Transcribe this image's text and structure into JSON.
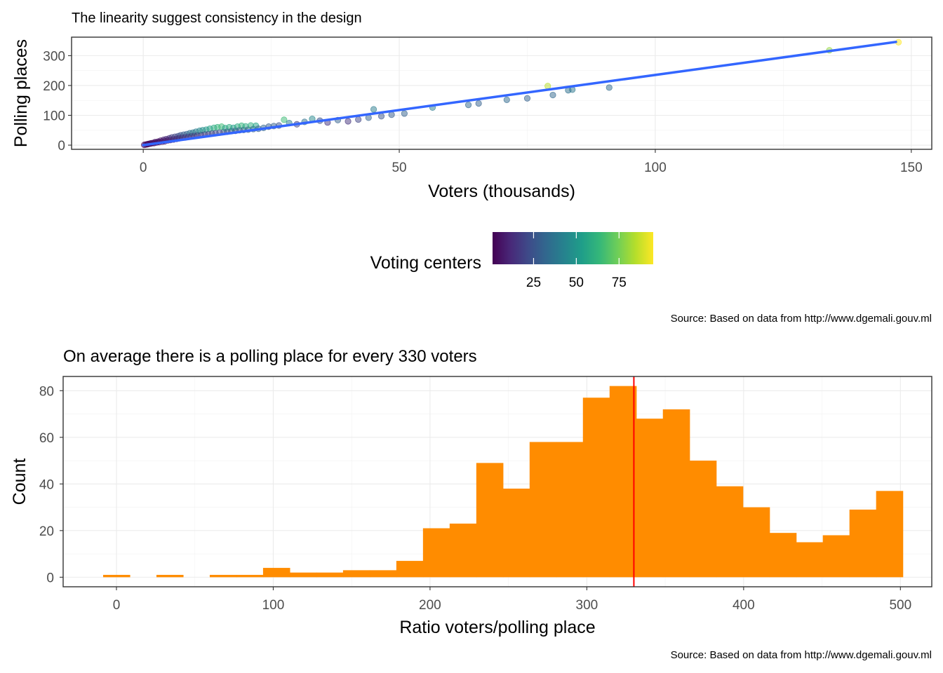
{
  "chart_data": [
    {
      "type": "scatter",
      "title": "The linearity suggest consistency in the design",
      "xlabel": "Voters (thousands)",
      "ylabel": "Polling places",
      "xlim": [
        -14,
        154
      ],
      "ylim": [
        -14,
        362
      ],
      "x_ticks": [
        0,
        50,
        100,
        150
      ],
      "y_ticks": [
        0,
        100,
        200,
        300
      ],
      "grid": true,
      "legend": {
        "title": "Voting centers",
        "position": "bottom",
        "type": "colorbar",
        "range": [
          1,
          95
        ],
        "ticks": [
          25,
          50,
          75
        ],
        "palette": [
          "#440154",
          "#482878",
          "#3e4a89",
          "#31688e",
          "#26828e",
          "#1f9e89",
          "#35b779",
          "#6ece58",
          "#b5de2b",
          "#fde725"
        ]
      },
      "fit_line": {
        "color": "#3366ff",
        "x": [
          0,
          147
        ],
        "y": [
          0,
          346
        ]
      },
      "points": [
        {
          "x": 0.2,
          "y": 1,
          "c": 1
        },
        {
          "x": 0.5,
          "y": 2,
          "c": 1
        },
        {
          "x": 0.8,
          "y": 3,
          "c": 2
        },
        {
          "x": 1.0,
          "y": 4,
          "c": 2
        },
        {
          "x": 1.3,
          "y": 5,
          "c": 3
        },
        {
          "x": 1.5,
          "y": 6,
          "c": 2
        },
        {
          "x": 1.8,
          "y": 7,
          "c": 4
        },
        {
          "x": 2.1,
          "y": 7,
          "c": 3
        },
        {
          "x": 2.3,
          "y": 10,
          "c": 5
        },
        {
          "x": 2.6,
          "y": 9,
          "c": 4
        },
        {
          "x": 2.9,
          "y": 12,
          "c": 6
        },
        {
          "x": 3.1,
          "y": 10,
          "c": 3
        },
        {
          "x": 3.4,
          "y": 15,
          "c": 8
        },
        {
          "x": 3.7,
          "y": 12,
          "c": 4
        },
        {
          "x": 4.0,
          "y": 18,
          "c": 10
        },
        {
          "x": 4.2,
          "y": 13,
          "c": 5
        },
        {
          "x": 4.5,
          "y": 20,
          "c": 12
        },
        {
          "x": 4.8,
          "y": 16,
          "c": 6
        },
        {
          "x": 5.1,
          "y": 23,
          "c": 14
        },
        {
          "x": 5.3,
          "y": 17,
          "c": 7
        },
        {
          "x": 5.6,
          "y": 26,
          "c": 18
        },
        {
          "x": 5.9,
          "y": 19,
          "c": 8
        },
        {
          "x": 6.2,
          "y": 28,
          "c": 20
        },
        {
          "x": 6.5,
          "y": 21,
          "c": 9
        },
        {
          "x": 6.8,
          "y": 30,
          "c": 22
        },
        {
          "x": 7.0,
          "y": 23,
          "c": 10
        },
        {
          "x": 7.3,
          "y": 33,
          "c": 25
        },
        {
          "x": 7.6,
          "y": 25,
          "c": 11
        },
        {
          "x": 7.9,
          "y": 35,
          "c": 28
        },
        {
          "x": 8.2,
          "y": 26,
          "c": 12
        },
        {
          "x": 8.5,
          "y": 37,
          "c": 30
        },
        {
          "x": 8.8,
          "y": 28,
          "c": 13
        },
        {
          "x": 9.1,
          "y": 40,
          "c": 35
        },
        {
          "x": 9.4,
          "y": 30,
          "c": 14
        },
        {
          "x": 9.7,
          "y": 42,
          "c": 38
        },
        {
          "x": 10.0,
          "y": 31,
          "c": 15
        },
        {
          "x": 10.3,
          "y": 45,
          "c": 40
        },
        {
          "x": 10.6,
          "y": 33,
          "c": 16
        },
        {
          "x": 11.0,
          "y": 48,
          "c": 45
        },
        {
          "x": 11.3,
          "y": 34,
          "c": 17
        },
        {
          "x": 11.6,
          "y": 50,
          "c": 48
        },
        {
          "x": 12.0,
          "y": 36,
          "c": 18
        },
        {
          "x": 12.3,
          "y": 52,
          "c": 50
        },
        {
          "x": 12.7,
          "y": 37,
          "c": 19
        },
        {
          "x": 13.0,
          "y": 55,
          "c": 55
        },
        {
          "x": 13.4,
          "y": 39,
          "c": 20
        },
        {
          "x": 13.8,
          "y": 58,
          "c": 58
        },
        {
          "x": 14.1,
          "y": 40,
          "c": 21
        },
        {
          "x": 14.5,
          "y": 60,
          "c": 62
        },
        {
          "x": 14.9,
          "y": 42,
          "c": 22
        },
        {
          "x": 15.3,
          "y": 62,
          "c": 65
        },
        {
          "x": 15.7,
          "y": 44,
          "c": 23
        },
        {
          "x": 16.0,
          "y": 57,
          "c": 55
        },
        {
          "x": 16.4,
          "y": 45,
          "c": 24
        },
        {
          "x": 16.8,
          "y": 60,
          "c": 60
        },
        {
          "x": 17.2,
          "y": 47,
          "c": 25
        },
        {
          "x": 17.6,
          "y": 58,
          "c": 52
        },
        {
          "x": 18.0,
          "y": 48,
          "c": 26
        },
        {
          "x": 18.4,
          "y": 62,
          "c": 58
        },
        {
          "x": 18.8,
          "y": 50,
          "c": 27
        },
        {
          "x": 19.2,
          "y": 65,
          "c": 62
        },
        {
          "x": 19.6,
          "y": 51,
          "c": 28
        },
        {
          "x": 20.0,
          "y": 63,
          "c": 58
        },
        {
          "x": 20.5,
          "y": 52,
          "c": 29
        },
        {
          "x": 21.0,
          "y": 66,
          "c": 60
        },
        {
          "x": 21.5,
          "y": 54,
          "c": 30
        },
        {
          "x": 22.0,
          "y": 65,
          "c": 55
        },
        {
          "x": 22.5,
          "y": 55,
          "c": 30
        },
        {
          "x": 23.5,
          "y": 58,
          "c": 32
        },
        {
          "x": 24.5,
          "y": 62,
          "c": 28
        },
        {
          "x": 25.5,
          "y": 64,
          "c": 30
        },
        {
          "x": 26.5,
          "y": 66,
          "c": 25
        },
        {
          "x": 27.5,
          "y": 85,
          "c": 65
        },
        {
          "x": 28.5,
          "y": 74,
          "c": 40
        },
        {
          "x": 30.0,
          "y": 70,
          "c": 20
        },
        {
          "x": 31.5,
          "y": 78,
          "c": 35
        },
        {
          "x": 33.0,
          "y": 88,
          "c": 45
        },
        {
          "x": 34.5,
          "y": 82,
          "c": 25
        },
        {
          "x": 36.0,
          "y": 76,
          "c": 15
        },
        {
          "x": 38.0,
          "y": 84,
          "c": 30
        },
        {
          "x": 40.0,
          "y": 80,
          "c": 15
        },
        {
          "x": 42.0,
          "y": 86,
          "c": 20
        },
        {
          "x": 44.0,
          "y": 92,
          "c": 30
        },
        {
          "x": 45.0,
          "y": 120,
          "c": 40
        },
        {
          "x": 46.5,
          "y": 97,
          "c": 25
        },
        {
          "x": 48.5,
          "y": 102,
          "c": 28
        },
        {
          "x": 51.0,
          "y": 106,
          "c": 30
        },
        {
          "x": 56.5,
          "y": 126,
          "c": 40
        },
        {
          "x": 63.5,
          "y": 135,
          "c": 32
        },
        {
          "x": 65.5,
          "y": 140,
          "c": 30
        },
        {
          "x": 71.0,
          "y": 152,
          "c": 33
        },
        {
          "x": 75.0,
          "y": 157,
          "c": 30
        },
        {
          "x": 79.0,
          "y": 198,
          "c": 85
        },
        {
          "x": 80.0,
          "y": 168,
          "c": 32
        },
        {
          "x": 83.0,
          "y": 184,
          "c": 35
        },
        {
          "x": 83.8,
          "y": 186,
          "c": 38
        },
        {
          "x": 91.0,
          "y": 193,
          "c": 33
        },
        {
          "x": 134.0,
          "y": 318,
          "c": 80
        },
        {
          "x": 147.5,
          "y": 345,
          "c": 95
        }
      ]
    },
    {
      "type": "bar",
      "subtype": "histogram",
      "title": "On average there is a polling place for every 330 voters",
      "xlabel": "Ratio voters/polling place",
      "ylabel": "Count",
      "xlim": [
        -34,
        520
      ],
      "ylim": [
        -4.1,
        86.1
      ],
      "x_ticks": [
        0,
        100,
        200,
        300,
        400,
        500
      ],
      "y_ticks": [
        0,
        20,
        40,
        60,
        80
      ],
      "grid": true,
      "bar_color": "#ff8c00",
      "bin_width": 17,
      "vline": {
        "x": 330,
        "color": "#ff0000"
      },
      "bins": [
        {
          "start": -8.5,
          "count": 1
        },
        {
          "start": 8.5,
          "count": 0
        },
        {
          "start": 25.5,
          "count": 1
        },
        {
          "start": 42.5,
          "count": 0
        },
        {
          "start": 59.5,
          "count": 1
        },
        {
          "start": 76.5,
          "count": 1
        },
        {
          "start": 93.5,
          "count": 4
        },
        {
          "start": 110.5,
          "count": 2
        },
        {
          "start": 127.5,
          "count": 2
        },
        {
          "start": 144.5,
          "count": 3
        },
        {
          "start": 161.5,
          "count": 3
        },
        {
          "start": 178.5,
          "count": 7
        },
        {
          "start": 195.5,
          "count": 21
        },
        {
          "start": 212.5,
          "count": 23
        },
        {
          "start": 229.5,
          "count": 49
        },
        {
          "start": 246.5,
          "count": 38
        },
        {
          "start": 263.5,
          "count": 58
        },
        {
          "start": 280.5,
          "count": 58
        },
        {
          "start": 297.5,
          "count": 77
        },
        {
          "start": 314.5,
          "count": 82
        },
        {
          "start": 331.5,
          "count": 68
        },
        {
          "start": 348.5,
          "count": 72
        },
        {
          "start": 365.5,
          "count": 50
        },
        {
          "start": 382.5,
          "count": 39
        },
        {
          "start": 399.5,
          "count": 30
        },
        {
          "start": 416.5,
          "count": 19
        },
        {
          "start": 433.5,
          "count": 15
        },
        {
          "start": 450.5,
          "count": 18
        },
        {
          "start": 467.5,
          "count": 29
        },
        {
          "start": 484.5,
          "count": 37
        }
      ]
    }
  ],
  "captions": {
    "top": "Source: Based on data from http://www.dgemali.gouv.ml",
    "bottom": "Source: Based on data from http://www.dgemali.gouv.ml"
  }
}
